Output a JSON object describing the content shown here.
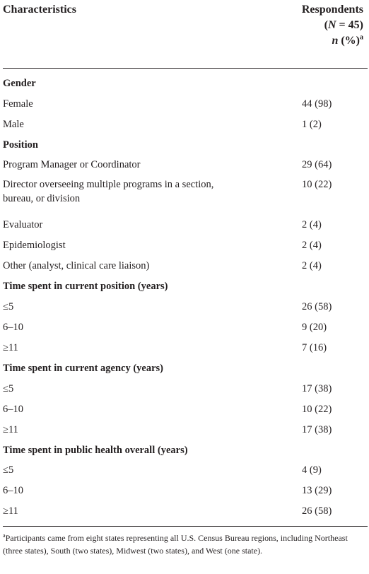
{
  "header": {
    "col1": "Characteristics",
    "col2_line1": "Respondents",
    "col2_line2": "(N = 45)",
    "col2_line3_n": "n",
    "col2_line3_rest": " (%)",
    "col2_sup": "a"
  },
  "rows": [
    {
      "label": "Gender",
      "value": "",
      "section": true
    },
    {
      "label": "Female",
      "value": "44 (98)"
    },
    {
      "label": "Male",
      "value": "1 (2)"
    },
    {
      "label": "Position",
      "value": "",
      "section": true
    },
    {
      "label": "Program Manager or Coordinator",
      "value": "29 (64)"
    },
    {
      "label": "Director overseeing multiple programs in a section, bureau, or division",
      "value": "10 (22)"
    },
    {
      "label": "Evaluator",
      "value": "2 (4)"
    },
    {
      "label": "Epidemiologist",
      "value": "2 (4)"
    },
    {
      "label": "Other (analyst, clinical care liaison)",
      "value": "2 (4)"
    },
    {
      "label": "Time spent in current position (years)",
      "value": "",
      "section": true
    },
    {
      "label": "≤5",
      "value": "26 (58)"
    },
    {
      "label": "6–10",
      "value": "9 (20)"
    },
    {
      "label": "≥11",
      "value": "7 (16)"
    },
    {
      "label": "Time spent in current agency (years)",
      "value": "",
      "section": true
    },
    {
      "label": "≤5",
      "value": "17 (38)"
    },
    {
      "label": "6–10",
      "value": "10 (22)"
    },
    {
      "label": "≥11",
      "value": "17 (38)"
    },
    {
      "label": "Time spent in public health overall (years)",
      "value": "",
      "section": true
    },
    {
      "label": "≤5",
      "value": "4 (9)"
    },
    {
      "label": "6–10",
      "value": "13 (29)"
    },
    {
      "label": "≥11",
      "value": "26 (58)"
    }
  ],
  "footnote": {
    "marker": "a",
    "text": "Participants came from eight states representing all U.S. Census Bureau regions, including Northeast (three states), South (two states), Midwest (two states), and West (one state)."
  }
}
